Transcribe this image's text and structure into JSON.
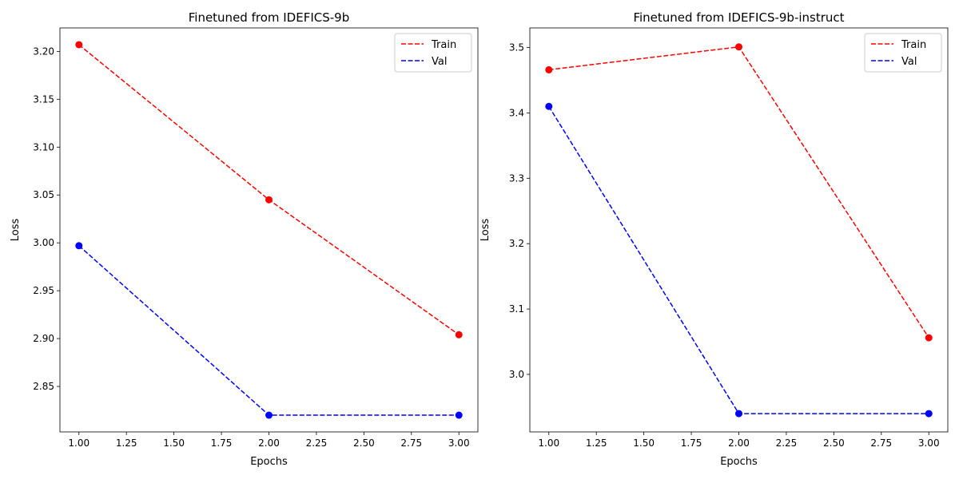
{
  "chart_data": [
    {
      "type": "line",
      "title": "Finetuned from IDEFICS-9b",
      "xlabel": "Epochs",
      "ylabel": "Loss",
      "xlim": [
        0.9,
        3.1
      ],
      "ylim": [
        2.8025,
        3.2245
      ],
      "xticks": [
        1.0,
        1.25,
        1.5,
        1.75,
        2.0,
        2.25,
        2.5,
        2.75,
        3.0
      ],
      "xtick_labels": [
        "1.00",
        "1.25",
        "1.50",
        "1.75",
        "2.00",
        "2.25",
        "2.50",
        "2.75",
        "3.00"
      ],
      "yticks": [
        2.85,
        2.9,
        2.95,
        3.0,
        3.05,
        3.1,
        3.15,
        3.2
      ],
      "ytick_labels": [
        "2.85",
        "2.90",
        "2.95",
        "3.00",
        "3.05",
        "3.10",
        "3.15",
        "3.20"
      ],
      "x": [
        1,
        2,
        3
      ],
      "series": [
        {
          "name": "Train",
          "values": [
            3.207,
            3.045,
            2.904
          ],
          "color": "#ff0000",
          "linestyle": "dashed",
          "marker": "circle"
        },
        {
          "name": "Val",
          "values": [
            2.997,
            2.82,
            2.82
          ],
          "color": "#0000ff",
          "linestyle": "dashed",
          "marker": "circle"
        }
      ],
      "legend": "top-right",
      "grid": false
    },
    {
      "type": "line",
      "title": "Finetuned from IDEFICS-9b-instruct",
      "xlabel": "Epochs",
      "ylabel": "Loss",
      "xlim": [
        0.9,
        3.1
      ],
      "ylim": [
        2.912,
        3.53
      ],
      "xticks": [
        1.0,
        1.25,
        1.5,
        1.75,
        2.0,
        2.25,
        2.5,
        2.75,
        3.0
      ],
      "xtick_labels": [
        "1.00",
        "1.25",
        "1.50",
        "1.75",
        "2.00",
        "2.25",
        "2.50",
        "2.75",
        "3.00"
      ],
      "yticks": [
        3.0,
        3.1,
        3.2,
        3.3,
        3.4,
        3.5
      ],
      "ytick_labels": [
        "3.0",
        "3.1",
        "3.2",
        "3.3",
        "3.4",
        "3.5"
      ],
      "x": [
        1,
        2,
        3
      ],
      "series": [
        {
          "name": "Train",
          "values": [
            3.466,
            3.501,
            3.056
          ],
          "color": "#ff0000",
          "linestyle": "dashed",
          "marker": "circle"
        },
        {
          "name": "Val",
          "values": [
            3.41,
            2.94,
            2.94
          ],
          "color": "#0000ff",
          "linestyle": "dashed",
          "marker": "circle"
        }
      ],
      "legend": "top-right",
      "grid": false
    }
  ]
}
